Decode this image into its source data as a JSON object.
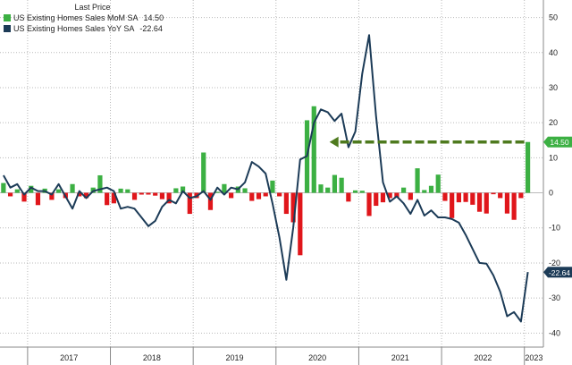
{
  "legend": {
    "header": "Last Price",
    "items": [
      {
        "label": "US Existing Homes Sales MoM SA",
        "value": "14.50",
        "color": "#3cb043"
      },
      {
        "label": "US Existing Homes Sales YoY SA",
        "value": "-22.64",
        "color": "#1c3b57"
      }
    ]
  },
  "chart_data": {
    "type": "bar",
    "title": "",
    "xlabel": "",
    "ylabel": "",
    "ylim": [
      -44,
      55
    ],
    "yticks": [
      -40,
      -30,
      -20,
      -10,
      0,
      10,
      20,
      30,
      40,
      50
    ],
    "x_tick_labels": [
      "2017",
      "2018",
      "2019",
      "2020",
      "2021",
      "2022",
      "2023"
    ],
    "grid": true,
    "y_axis_side": "right",
    "legend_position": "top-left",
    "x_start": "2016-09",
    "positive_bar_color": "#3cb043",
    "negative_bar_color": "#e0161b",
    "line_color": "#1c3b57",
    "arrow_color": "#4e7a1e",
    "series": [
      {
        "name": "US Existing Homes Sales MoM SA",
        "kind": "bar",
        "x": [
          "2016-09",
          "2016-10",
          "2016-11",
          "2016-12",
          "2017-01",
          "2017-02",
          "2017-03",
          "2017-04",
          "2017-05",
          "2017-06",
          "2017-07",
          "2017-08",
          "2017-09",
          "2017-10",
          "2017-11",
          "2017-12",
          "2018-01",
          "2018-02",
          "2018-03",
          "2018-04",
          "2018-05",
          "2018-06",
          "2018-07",
          "2018-08",
          "2018-09",
          "2018-10",
          "2018-11",
          "2018-12",
          "2019-01",
          "2019-02",
          "2019-03",
          "2019-04",
          "2019-05",
          "2019-06",
          "2019-07",
          "2019-08",
          "2019-09",
          "2019-10",
          "2019-11",
          "2019-12",
          "2020-01",
          "2020-02",
          "2020-03",
          "2020-04",
          "2020-05",
          "2020-06",
          "2020-07",
          "2020-08",
          "2020-09",
          "2020-10",
          "2020-11",
          "2020-12",
          "2021-01",
          "2021-02",
          "2021-03",
          "2021-04",
          "2021-05",
          "2021-06",
          "2021-07",
          "2021-08",
          "2021-09",
          "2021-10",
          "2021-11",
          "2021-12",
          "2022-01",
          "2022-02",
          "2022-03",
          "2022-04",
          "2022-05",
          "2022-06",
          "2022-07",
          "2022-08",
          "2022-09",
          "2022-10",
          "2022-11",
          "2022-12",
          "2023-01"
        ],
        "values": [
          2.8,
          -1.0,
          1.0,
          -2.5,
          2.0,
          -3.5,
          1.2,
          -2.0,
          1.0,
          -1.5,
          2.5,
          -1.0,
          -1.5,
          1.5,
          5.0,
          -3.5,
          -3.0,
          1.2,
          1.0,
          -2.0,
          -0.5,
          -0.5,
          -0.8,
          -1.8,
          -3.0,
          1.3,
          1.8,
          -6.0,
          -1.5,
          11.5,
          -4.9,
          0.3,
          2.5,
          -1.5,
          1.8,
          1.3,
          -2.3,
          -1.8,
          -1.0,
          3.5,
          -1.0,
          -6.0,
          -8.4,
          -17.8,
          20.7,
          24.7,
          2.4,
          1.5,
          5.1,
          4.3,
          -2.5,
          0.7,
          0.6,
          -6.6,
          -3.7,
          -2.7,
          -1.5,
          -1.3,
          1.5,
          -2.0,
          7.0,
          0.8,
          2.0,
          5.2,
          -2.3,
          -7.2,
          -2.7,
          -2.6,
          -3.4,
          -5.4,
          -5.9,
          -0.4,
          -1.5,
          -5.9,
          -7.7,
          -1.5,
          14.5
        ]
      },
      {
        "name": "US Existing Homes Sales YoY SA",
        "kind": "line",
        "x": [
          "2016-09",
          "2016-10",
          "2016-11",
          "2016-12",
          "2017-01",
          "2017-02",
          "2017-03",
          "2017-04",
          "2017-05",
          "2017-06",
          "2017-07",
          "2017-08",
          "2017-09",
          "2017-10",
          "2017-11",
          "2017-12",
          "2018-01",
          "2018-02",
          "2018-03",
          "2018-04",
          "2018-05",
          "2018-06",
          "2018-07",
          "2018-08",
          "2018-09",
          "2018-10",
          "2018-11",
          "2018-12",
          "2019-01",
          "2019-02",
          "2019-03",
          "2019-04",
          "2019-05",
          "2019-06",
          "2019-07",
          "2019-08",
          "2019-09",
          "2019-10",
          "2019-11",
          "2019-12",
          "2020-01",
          "2020-02",
          "2020-03",
          "2020-04",
          "2020-05",
          "2020-06",
          "2020-07",
          "2020-08",
          "2020-09",
          "2020-10",
          "2020-11",
          "2020-12",
          "2021-01",
          "2021-02",
          "2021-03",
          "2021-04",
          "2021-05",
          "2021-06",
          "2021-07",
          "2021-08",
          "2021-09",
          "2021-10",
          "2021-11",
          "2021-12",
          "2022-01",
          "2022-02",
          "2022-03",
          "2022-04",
          "2022-05",
          "2022-06",
          "2022-07",
          "2022-08",
          "2022-09",
          "2022-10",
          "2022-11",
          "2022-12",
          "2023-01"
        ],
        "values": [
          5.0,
          1.5,
          2.5,
          -0.5,
          1.5,
          0.5,
          0.5,
          -0.5,
          2.5,
          -1.0,
          -4.5,
          0.5,
          -1.5,
          0.5,
          1.0,
          1.5,
          0.5,
          -4.5,
          -4.0,
          -4.5,
          -7.0,
          -9.5,
          -8.0,
          -4.0,
          -2.0,
          -3.0,
          0.5,
          -1.5,
          -1.0,
          0.5,
          -2.0,
          1.5,
          -0.5,
          1.5,
          1.0,
          3.0,
          8.8,
          7.5,
          5.5,
          -3.0,
          -12.8,
          -24.8,
          -9.9,
          9.5,
          10.5,
          20.0,
          23.8,
          23.0,
          20.5,
          22.6,
          13.0,
          17.5,
          34.0,
          45.0,
          22.0,
          3.0,
          -2.5,
          -1.0,
          -3.0,
          -6.0,
          -2.0,
          -6.5,
          -5.0,
          -7.0,
          -7.0,
          -7.5,
          -8.5,
          -12.0,
          -16.0,
          -20.0,
          -20.2,
          -23.5,
          -28.2,
          -35.2,
          -34.0,
          -36.7,
          -22.6
        ]
      }
    ],
    "annotations": [
      {
        "type": "dashed-arrow",
        "from_x": "2023-01",
        "to_x": "2020-08",
        "y": 14.5
      }
    ],
    "end_labels": [
      {
        "text": "14.50",
        "y": 14.5,
        "color": "#3cb043"
      },
      {
        "text": "-22.64",
        "y": -22.64,
        "color": "#1c3b57"
      }
    ]
  }
}
